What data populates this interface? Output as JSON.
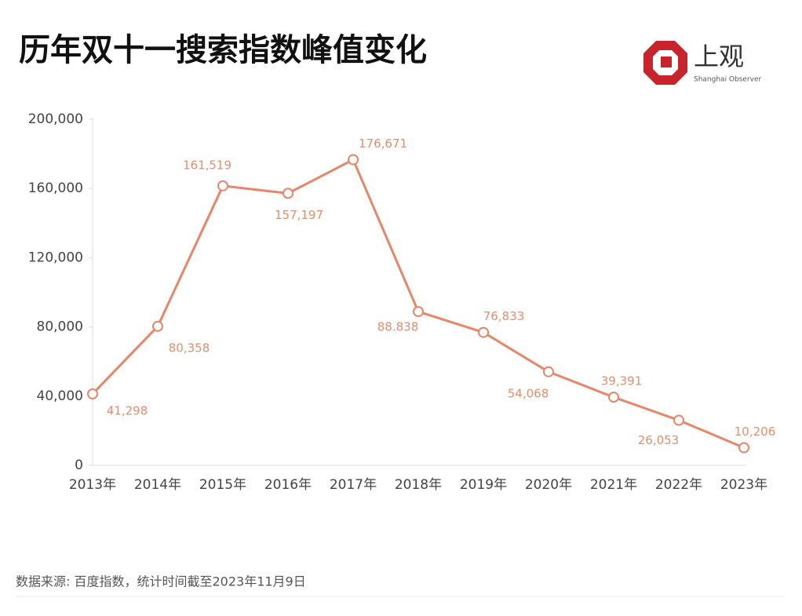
{
  "chart_data": {
    "type": "line",
    "title": "历年双十一搜索指数峰值变化",
    "categories": [
      "2013年",
      "2014年",
      "2015年",
      "2016年",
      "2017年",
      "2018年",
      "2019年",
      "2020年",
      "2021年",
      "2022年",
      "2023年"
    ],
    "series": [
      {
        "color": "#e8866c",
        "values": [
          41298,
          80358,
          161519,
          157197,
          176671,
          88838,
          76833,
          54068,
          39391,
          26053,
          10206
        ],
        "value_labels": [
          "41,298",
          "80,358",
          "161,519",
          "157,197",
          "176,671",
          "88.838",
          "76,833",
          "54,068",
          "39,391",
          "26,053",
          "10,206"
        ]
      }
    ],
    "ylim": [
      0,
      200000
    ],
    "yticks": [
      0,
      {
        "value": 40000,
        "label": "40,000"
      },
      {
        "value": 80000,
        "label": "80,000"
      },
      {
        "value": 120000,
        "label": "120,000"
      },
      {
        "value": 160000,
        "label": "160,000"
      },
      {
        "value": 200000,
        "label": "200,000"
      }
    ]
  },
  "logo": {
    "name": "上观",
    "subtitle": "Shanghai Observer"
  },
  "source": "数据来源: 百度指数，统计时间截至2023年11月9日"
}
